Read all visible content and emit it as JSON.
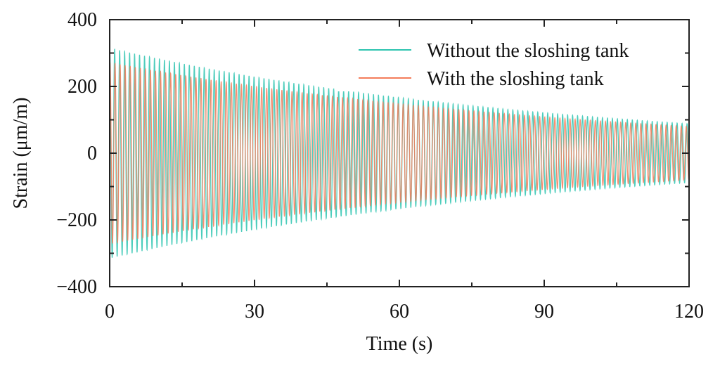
{
  "chart_data": {
    "type": "line",
    "title": "",
    "xlabel": "Time (s)",
    "ylabel": "Strain (μm/m)",
    "xlim": [
      0,
      120
    ],
    "ylim": [
      -400,
      400
    ],
    "xticks": [
      0,
      30,
      60,
      90,
      120
    ],
    "yticks": [
      -400,
      -200,
      0,
      200,
      400
    ],
    "xtick_labels": [
      "0",
      "30",
      "60",
      "90",
      "120"
    ],
    "ytick_labels": [
      "−400",
      "−200",
      "0",
      "200",
      "400"
    ],
    "grid": false,
    "legend_position": "top-right",
    "series": [
      {
        "name": "Without the sloshing tank",
        "color": "#2ec4b0",
        "signal": "decaying-sine",
        "frequency_hz": 0.97,
        "amplitude_start": 315,
        "amplitude_end": 88,
        "phase": 1.57
      },
      {
        "name": "With the sloshing tank",
        "color": "#f47c5a",
        "signal": "decaying-sine",
        "frequency_hz": 0.955,
        "amplitude_start": 272,
        "amplitude_end": 80,
        "phase": 1.2
      }
    ]
  }
}
